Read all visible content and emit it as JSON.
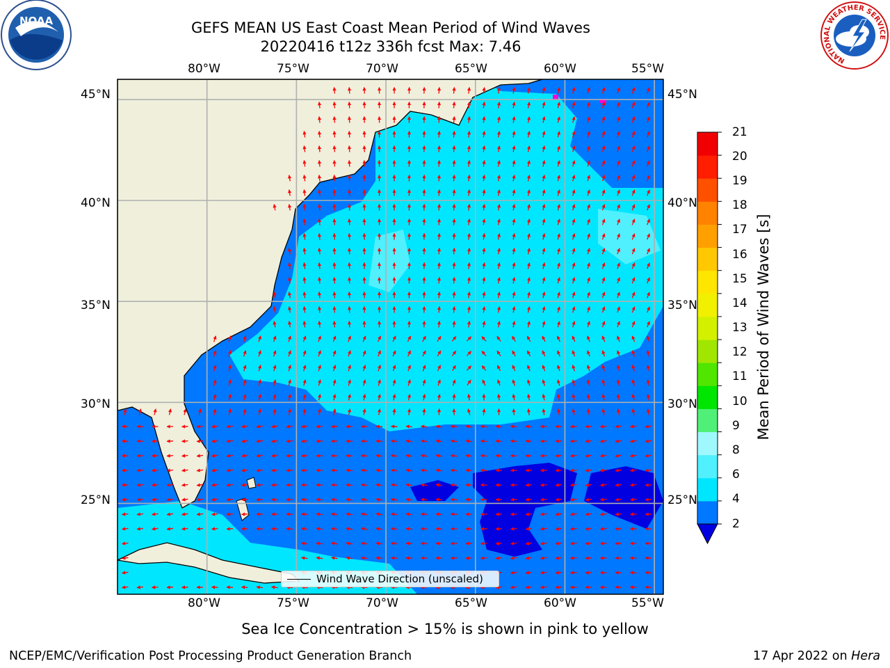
{
  "title": {
    "line1": "GEFS MEAN US East Coast Mean Period of Wind Waves",
    "line2": "20220416 t12z 336h fcst   Max: 7.46"
  },
  "map": {
    "lon_range": [
      -85,
      -54.5
    ],
    "lat_range": [
      20.5,
      46
    ],
    "lon_labels": [
      "80°W",
      "75°W",
      "70°W",
      "65°W",
      "60°W",
      "55°W"
    ],
    "lat_labels": [
      "45°N",
      "40°N",
      "35°N",
      "30°N",
      "25°N"
    ],
    "legend_label": "Wind Wave Direction (unscaled)",
    "arrow_color": "#ff0000",
    "land_color": "#efefdc"
  },
  "colorbar": {
    "label": "Mean Period of Wind Waves [s]",
    "ticks": [
      "21",
      "20",
      "19",
      "18",
      "17",
      "16",
      "15",
      "14",
      "13",
      "12",
      "11",
      "10",
      "9",
      "8",
      "6",
      "4",
      "2"
    ],
    "colors": [
      "#0000e0",
      "#0078ff",
      "#00e6ff",
      "#50f0ff",
      "#a0f8ff",
      "#50f078",
      "#00e600",
      "#50e600",
      "#a0e600",
      "#d2f000",
      "#f0f000",
      "#ffe600",
      "#ffc800",
      "#ffa000",
      "#ff8200",
      "#ff5000",
      "#ff1e00",
      "#f00000"
    ]
  },
  "sub_note": "Sea Ice Concentration > 15% is shown in pink to yellow",
  "footer": {
    "credit": "NCEP/EMC/Verification Post Processing Product Generation Branch",
    "date": "17 Apr 2022 on ",
    "machine": "Hera"
  },
  "logos": {
    "noaa_text": "NOAA",
    "nws_text": "NATIONAL WEATHER SERVICE"
  }
}
